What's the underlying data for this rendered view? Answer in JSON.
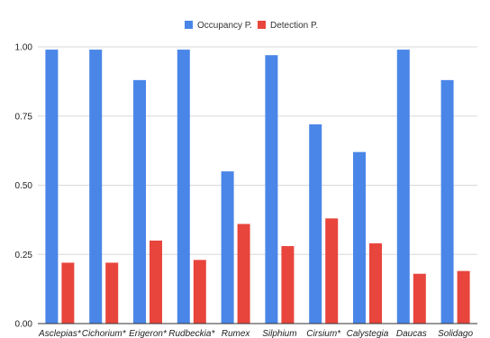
{
  "chart_data": {
    "type": "bar",
    "categories": [
      "Asclepias*",
      "Cichorium*",
      "Erigeron*",
      "Rudbeckia*",
      "Rumex",
      "Silphium",
      "Cirsium*",
      "Calystegia",
      "Daucas",
      "Solidago"
    ],
    "series": [
      {
        "name": "Occupancy P.",
        "color": "#4a86e8",
        "values": [
          0.99,
          0.99,
          0.88,
          0.99,
          0.55,
          0.97,
          0.72,
          0.62,
          0.99,
          0.88
        ]
      },
      {
        "name": "Detection P.",
        "color": "#e8453c",
        "values": [
          0.22,
          0.22,
          0.3,
          0.23,
          0.36,
          0.28,
          0.38,
          0.29,
          0.18,
          0.19
        ]
      }
    ],
    "y_ticks": [
      "0.00",
      "0.25",
      "0.50",
      "0.75",
      "1.00"
    ],
    "ylim": [
      0,
      1
    ],
    "grid": true,
    "legend_position": "top-center",
    "title": "",
    "xlabel": "",
    "ylabel": ""
  }
}
